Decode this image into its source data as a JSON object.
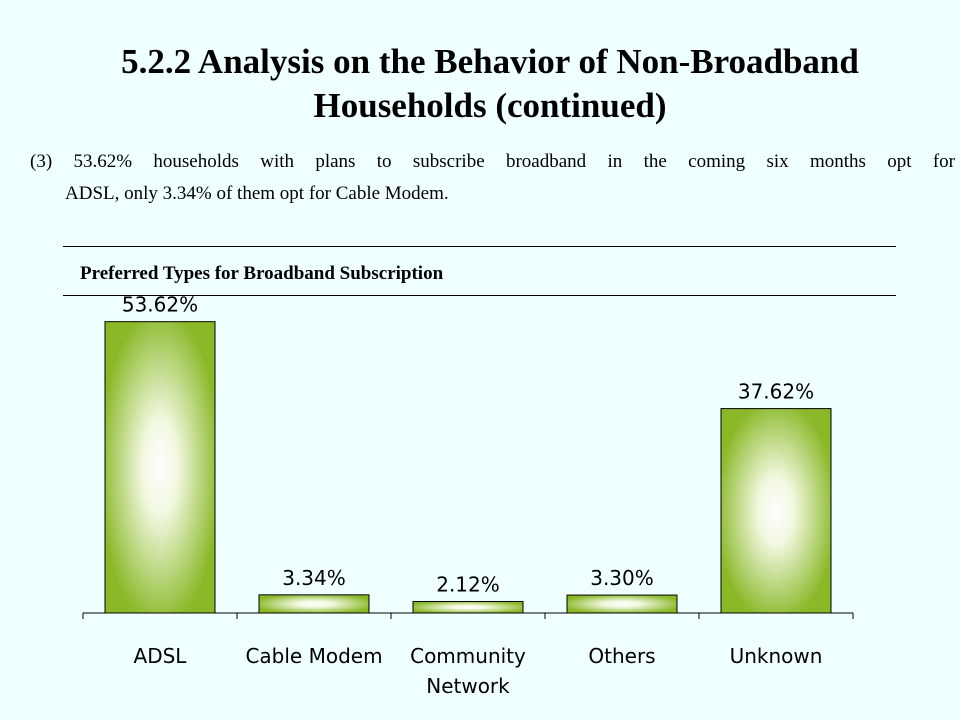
{
  "slide": {
    "title_line1": "5.2.2 Analysis on the Behavior of Non-Broadband",
    "title_line2": "Households (continued)",
    "body_line1": "(3) 53.62% households with plans to subscribe broadband in the coming six months opt for",
    "body_line2": "ADSL, only 3.34% of them opt for Cable Modem."
  },
  "chart_data": {
    "type": "bar",
    "title": "Preferred Types for Broadband Subscription",
    "categories": [
      [
        "ADSL"
      ],
      [
        "Cable Modem"
      ],
      [
        "Community",
        "Network"
      ],
      [
        "Others"
      ],
      [
        "Unknown"
      ]
    ],
    "values": [
      53.62,
      3.34,
      2.12,
      3.3,
      37.62
    ],
    "data_labels": [
      "53.62%",
      "3.34%",
      "2.12%",
      "3.30%",
      "37.62%"
    ],
    "unit": "%",
    "ylim": [
      0,
      60
    ],
    "grid": false,
    "legend": "none",
    "colors": {
      "bar_edge": "#8ab828",
      "bar_center": "#ffffff",
      "bar_border": "#000000"
    }
  }
}
